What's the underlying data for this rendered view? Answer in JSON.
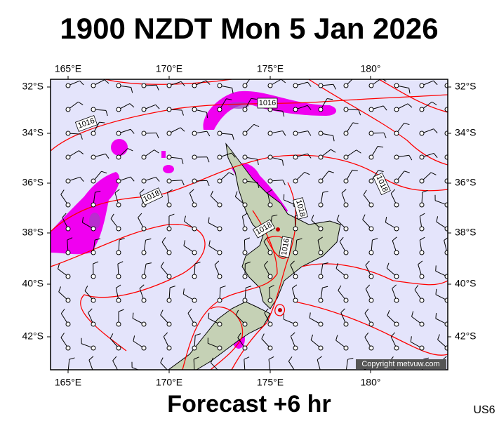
{
  "title": "1900 NZDT Mon 5 Jan 2026",
  "longitude_labels": [
    "165°E",
    "170°E",
    "175°E",
    "180°"
  ],
  "latitude_labels": [
    "32°S",
    "34°S",
    "36°S",
    "38°S",
    "40°S",
    "42°S"
  ],
  "isobar_labels": [
    "1016",
    "1016",
    "1018",
    "1018",
    "1018",
    "1018",
    "1016"
  ],
  "copyright": "Copyright metvuw.com",
  "footer": "Forecast +6 hr",
  "code": "US6"
}
